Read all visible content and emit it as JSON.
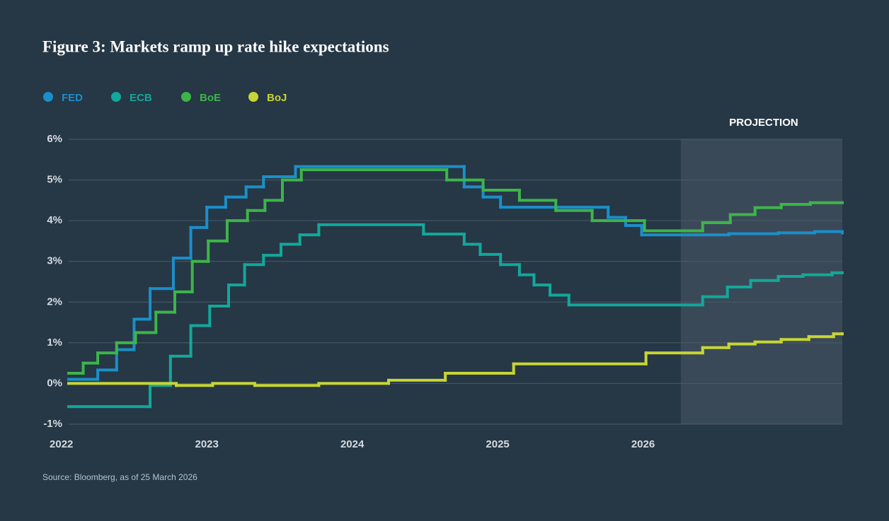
{
  "chart_data": {
    "type": "step",
    "title": "Figure 3: Markets ramp up rate hike expectations",
    "source": "Source: Bloomberg, as of 25 March 2026",
    "projection": {
      "label": "PROJECTION",
      "start": 2026.26
    },
    "xlim": [
      2022.05,
      2027.37
    ],
    "xticks": [
      2022,
      2023,
      2024,
      2025,
      2026
    ],
    "ylim": [
      -1,
      6
    ],
    "yticks": [
      {
        "value": -1,
        "label": "-1%"
      },
      {
        "value": 0,
        "label": "0%"
      },
      {
        "value": 1,
        "label": "1%"
      },
      {
        "value": 2,
        "label": "2%"
      },
      {
        "value": 3,
        "label": "3%"
      },
      {
        "value": 4,
        "label": "4%"
      },
      {
        "value": 5,
        "label": "5%"
      },
      {
        "value": 6,
        "label": "6%"
      }
    ],
    "grid": true,
    "series": [
      {
        "name": "FED",
        "color": "#1b8fc9",
        "x": [
          2022.05,
          2022.25,
          2022.38,
          2022.5,
          2022.61,
          2022.77,
          2022.89,
          2023.0,
          2023.13,
          2023.27,
          2023.39,
          2023.61,
          2024.77,
          2024.9,
          2025.02,
          2025.76,
          2025.88,
          2025.99,
          2026.59,
          2026.93,
          2027.18,
          2027.37
        ],
        "values": [
          0.1,
          0.33,
          0.83,
          1.58,
          2.33,
          3.08,
          3.83,
          4.33,
          4.58,
          4.83,
          5.08,
          5.33,
          4.83,
          4.58,
          4.33,
          4.08,
          3.88,
          3.65,
          3.68,
          3.7,
          3.73,
          3.7
        ]
      },
      {
        "name": "ECB",
        "color": "#12a89a",
        "x": [
          2022.05,
          2022.61,
          2022.75,
          2022.89,
          2023.02,
          2023.15,
          2023.26,
          2023.39,
          2023.51,
          2023.64,
          2023.77,
          2024.49,
          2024.77,
          2024.88,
          2025.02,
          2025.15,
          2025.25,
          2025.36,
          2025.49,
          2026.41,
          2026.58,
          2026.74,
          2026.93,
          2027.1,
          2027.3,
          2027.37
        ],
        "values": [
          -0.57,
          -0.05,
          0.67,
          1.42,
          1.9,
          2.42,
          2.92,
          3.15,
          3.42,
          3.65,
          3.9,
          3.67,
          3.42,
          3.17,
          2.92,
          2.67,
          2.42,
          2.17,
          1.93,
          2.13,
          2.37,
          2.53,
          2.63,
          2.67,
          2.72,
          2.72
        ]
      },
      {
        "name": "BoE",
        "color": "#3db549",
        "x": [
          2022.05,
          2022.15,
          2022.25,
          2022.38,
          2022.51,
          2022.65,
          2022.78,
          2022.9,
          2023.01,
          2023.14,
          2023.28,
          2023.4,
          2023.52,
          2023.65,
          2024.65,
          2024.9,
          2025.15,
          2025.4,
          2025.65,
          2026.01,
          2026.41,
          2026.6,
          2026.77,
          2026.95,
          2027.15,
          2027.37
        ],
        "values": [
          0.25,
          0.5,
          0.75,
          1.0,
          1.25,
          1.75,
          2.25,
          3.0,
          3.5,
          4.0,
          4.25,
          4.5,
          5.0,
          5.25,
          5.0,
          4.75,
          4.5,
          4.25,
          4.0,
          3.75,
          3.95,
          4.15,
          4.32,
          4.4,
          4.44,
          4.44
        ]
      },
      {
        "name": "BoJ",
        "color": "#c7d632",
        "x": [
          2022.05,
          2022.79,
          2023.04,
          2023.33,
          2023.77,
          2024.25,
          2024.64,
          2025.11,
          2026.02,
          2026.41,
          2026.59,
          2026.77,
          2026.95,
          2027.14,
          2027.31,
          2027.37
        ],
        "values": [
          0,
          -0.05,
          0,
          -0.05,
          0,
          0.08,
          0.25,
          0.48,
          0.75,
          0.88,
          0.97,
          1.02,
          1.08,
          1.15,
          1.22,
          1.22
        ]
      }
    ]
  }
}
